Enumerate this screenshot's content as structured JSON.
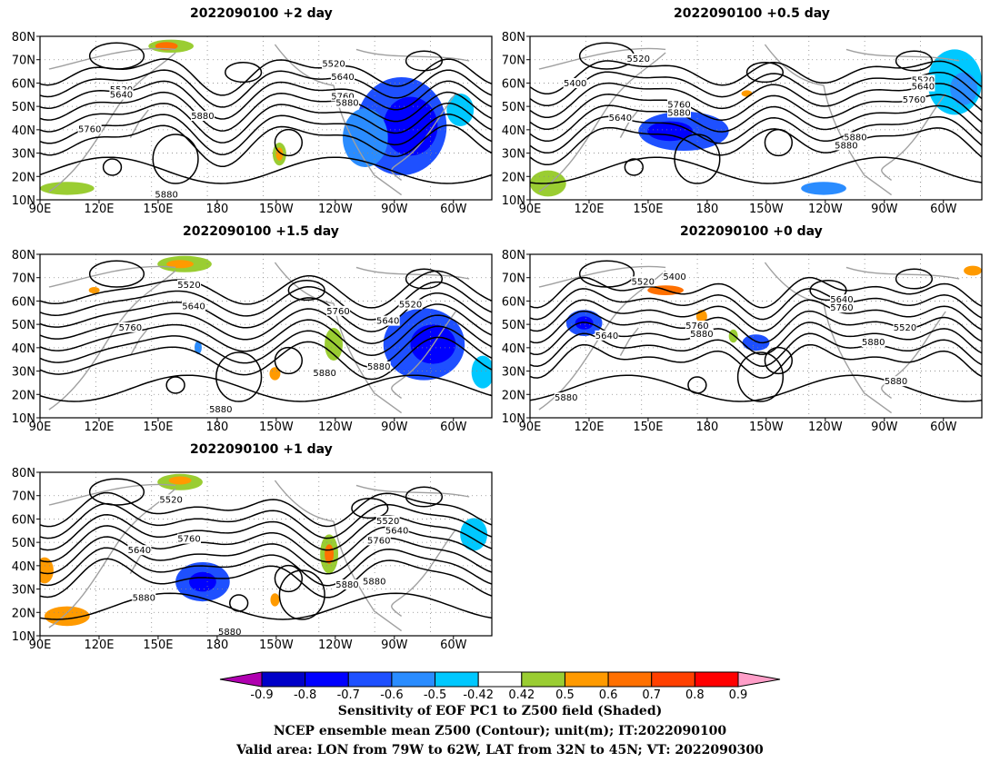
{
  "panels": [
    {
      "id": "p2d",
      "title": "2022090100 +2 day",
      "contour_labels": [
        "5520",
        "5640",
        "5760",
        "5880",
        "5760",
        "5640",
        "5520",
        "5880",
        "5880"
      ]
    },
    {
      "id": "p05d",
      "title": "2022090100 +0.5 day",
      "contour_labels": [
        "5520",
        "5400",
        "5640",
        "5880",
        "5760",
        "5520",
        "5640",
        "5760",
        "5880",
        "5880"
      ]
    },
    {
      "id": "p15d",
      "title": "2022090100 +1.5 day",
      "contour_labels": [
        "5520",
        "5640",
        "5760",
        "5760",
        "5640",
        "5520",
        "5880",
        "5880",
        "5880"
      ]
    },
    {
      "id": "p0d",
      "title": "2022090100 +0 day",
      "contour_labels": [
        "5520",
        "5400",
        "5640",
        "5760",
        "5880",
        "5640",
        "5760",
        "5520",
        "5880",
        "5880",
        "5880"
      ]
    },
    {
      "id": "p1d",
      "title": "2022090100 +1 day",
      "contour_labels": [
        "5520",
        "5640",
        "5760",
        "5520",
        "5640",
        "5760",
        "5880",
        "5880",
        "5880",
        "5880"
      ]
    }
  ],
  "axes": {
    "lat_ticks": [
      "80N",
      "70N",
      "60N",
      "50N",
      "40N",
      "30N",
      "20N",
      "10N"
    ],
    "lon_ticks": [
      "90E",
      "120E",
      "150E",
      "180",
      "150W",
      "120W",
      "90W",
      "60W"
    ]
  },
  "colorbar": {
    "ticks": [
      "-0.9",
      "-0.8",
      "-0.7",
      "-0.6",
      "-0.5",
      "-0.42",
      "0.42",
      "0.5",
      "0.6",
      "0.7",
      "0.8",
      "0.9"
    ],
    "colors": [
      "#b000b0",
      "#0000c8",
      "#0000ff",
      "#1e50ff",
      "#2a8cff",
      "#00c8ff",
      "#ffffff",
      "#9acd32",
      "#ff9a00",
      "#ff7000",
      "#ff4000",
      "#ff0000",
      "#ff9ec8"
    ]
  },
  "footer": {
    "line1": "Sensitivity of EOF PC1 to Z500 field (Shaded)",
    "line2": "NCEP ensemble mean Z500 (Contour); unit(m); IT:2022090100",
    "line3": "Valid area: LON from 79W to 62W, LAT from 32N to 45N; VT: 2022090300"
  }
}
